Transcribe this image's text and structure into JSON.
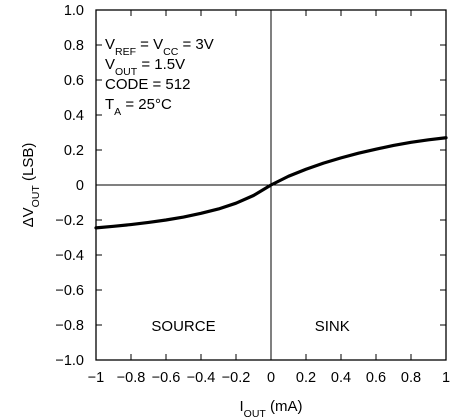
{
  "chart_data": {
    "type": "line",
    "title": "",
    "xlabel": {
      "main": "I",
      "sub": "OUT",
      "unit": " (mA)"
    },
    "ylabel": {
      "prefix": "ΔV",
      "sub": "OUT",
      "unit": " (LSB)"
    },
    "xlim": [
      -1,
      1
    ],
    "ylim": [
      -1.0,
      1.0
    ],
    "x_ticks": [
      -1,
      -0.8,
      -0.6,
      -0.4,
      -0.2,
      0,
      0.2,
      0.4,
      0.6,
      0.8,
      1
    ],
    "x_tick_labels": [
      "−1",
      "−0.8",
      "−0.6",
      "−0.4",
      "−0.2",
      "0",
      "0.2",
      "0.4",
      "0.6",
      "0.8",
      "1"
    ],
    "y_ticks": [
      1.0,
      0.8,
      0.6,
      0.4,
      0.2,
      0,
      -0.2,
      -0.4,
      -0.6,
      -0.8,
      -1.0
    ],
    "y_tick_labels": [
      "1.0",
      "0.8",
      "0.6",
      "0.4",
      "0.2",
      "0",
      "−0.2",
      "−0.4",
      "−0.6",
      "−0.8",
      "−1.0"
    ],
    "grid": false,
    "zero_lines": true,
    "annotations": [
      {
        "main": "V",
        "sub": "REF",
        "rest": " = V",
        "sub2": "CC",
        "rest2": " = 3V"
      },
      {
        "main": "V",
        "sub": "OUT",
        "rest": " = 1.5V"
      },
      {
        "main": "CODE = 512"
      },
      {
        "main": "T",
        "sub": "A",
        "rest": " = 25°C"
      }
    ],
    "regions": [
      {
        "label": "SOURCE",
        "x": -0.5
      },
      {
        "label": "SINK",
        "x": 0.35
      }
    ],
    "series": [
      {
        "color": "#000000",
        "x": [
          -1.0,
          -0.9,
          -0.8,
          -0.7,
          -0.6,
          -0.5,
          -0.4,
          -0.3,
          -0.2,
          -0.1,
          0.0,
          0.1,
          0.2,
          0.3,
          0.4,
          0.5,
          0.6,
          0.7,
          0.8,
          0.9,
          1.0
        ],
        "y": [
          -0.245,
          -0.236,
          -0.226,
          -0.214,
          -0.2,
          -0.183,
          -0.162,
          -0.137,
          -0.104,
          -0.06,
          0.0,
          0.05,
          0.09,
          0.125,
          0.155,
          0.182,
          0.205,
          0.226,
          0.244,
          0.258,
          0.27
        ]
      }
    ]
  }
}
